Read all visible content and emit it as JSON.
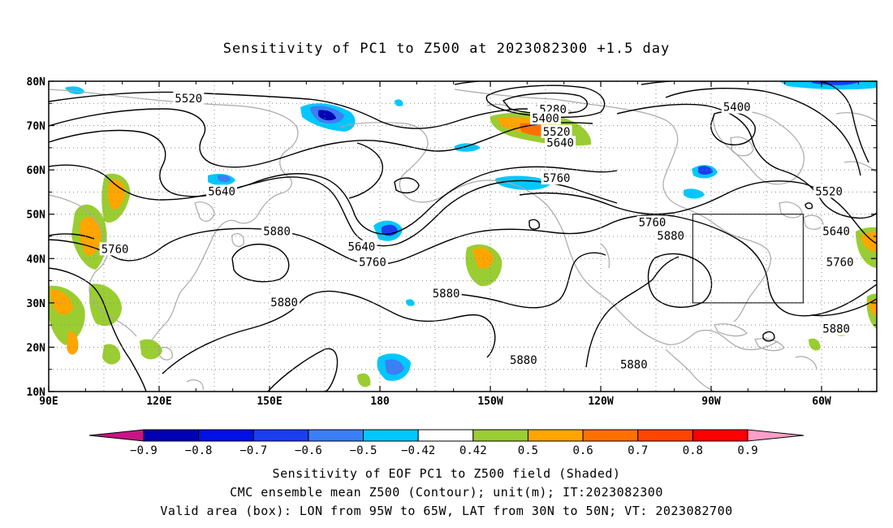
{
  "title": "Sensitivity of PC1 to Z500 at 2023082300 +1.5 day",
  "map": {
    "lon_ticks": [
      "90E",
      "120E",
      "150E",
      "180",
      "150W",
      "120W",
      "90W",
      "60W"
    ],
    "lat_ticks": [
      "80N",
      "70N",
      "60N",
      "50N",
      "40N",
      "30N",
      "20N",
      "10N"
    ],
    "lon_range_deg_east": [
      90,
      315
    ],
    "lat_range": [
      10,
      80
    ],
    "gridlines": "dotted",
    "coastline_color": "#a9a9a9",
    "contour_color": "#000000",
    "valid_box": {
      "lon_west": 95,
      "lon_east": 65,
      "lat_south": 30,
      "lat_north": 50
    },
    "contour_labels": [
      {
        "text": "5520",
        "lon": 128,
        "lat": 76
      },
      {
        "text": "5280",
        "lon": 227,
        "lat": 73.5
      },
      {
        "text": "5400",
        "lon": 225,
        "lat": 71.5
      },
      {
        "text": "5520",
        "lon": 228,
        "lat": 68.5
      },
      {
        "text": "5640",
        "lon": 229,
        "lat": 66
      },
      {
        "text": "5400",
        "lon": 277,
        "lat": 74
      },
      {
        "text": "5640",
        "lon": 137,
        "lat": 55
      },
      {
        "text": "5760",
        "lon": 228,
        "lat": 58
      },
      {
        "text": "5520",
        "lon": 302,
        "lat": 55
      },
      {
        "text": "5760",
        "lon": 254,
        "lat": 48
      },
      {
        "text": "5880",
        "lon": 152,
        "lat": 46
      },
      {
        "text": "5640",
        "lon": 175,
        "lat": 42.5
      },
      {
        "text": "5880",
        "lon": 259,
        "lat": 45
      },
      {
        "text": "5640",
        "lon": 304,
        "lat": 46
      },
      {
        "text": "5760",
        "lon": 108,
        "lat": 42
      },
      {
        "text": "5760",
        "lon": 178,
        "lat": 39
      },
      {
        "text": "5760",
        "lon": 305,
        "lat": 39
      },
      {
        "text": "5880",
        "lon": 198,
        "lat": 32
      },
      {
        "text": "5880",
        "lon": 154,
        "lat": 30
      },
      {
        "text": "5880",
        "lon": 304,
        "lat": 24
      },
      {
        "text": "5880",
        "lon": 219,
        "lat": 17
      },
      {
        "text": "5880",
        "lon": 249,
        "lat": 16
      }
    ]
  },
  "colorbar": {
    "labels": [
      "−0.9",
      "−0.8",
      "−0.7",
      "−0.6",
      "−0.5",
      "−0.42",
      "0.42",
      "0.5",
      "0.6",
      "0.7",
      "0.8",
      "0.9"
    ],
    "colors": [
      "#0000b4",
      "#0010e6",
      "#1a3ef0",
      "#3a7ff5",
      "#00c8ff",
      "#ffffff",
      "#9acd32",
      "#ffa500",
      "#ff7000",
      "#ff4500",
      "#ff0000"
    ],
    "low_extend_color": "#c71585",
    "high_extend_color": "#ff9ec8"
  },
  "captions": {
    "line1": "Sensitivity of EOF PC1 to Z500 field (Shaded)",
    "line2": "CMC ensemble mean Z500 (Contour); unit(m); IT:2023082300",
    "line3": "Valid area (box): LON from 95W to 65W, LAT from 30N to 50N; VT: 2023082700"
  }
}
